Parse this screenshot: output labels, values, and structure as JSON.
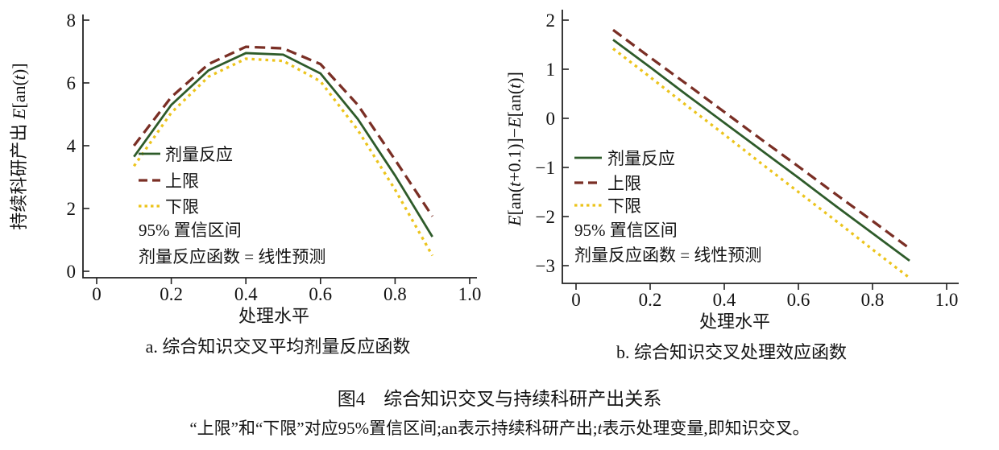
{
  "figure": {
    "caption": "图4　综合知识交叉与持续科研产出关系",
    "note": "“上限”和“下限”对应95%置信区间;an表示持续科研产出;t表示处理变量,即知识交叉。"
  },
  "colors": {
    "dose_response": "#2e5b2a",
    "upper_bound": "#7a2f25",
    "lower_bound": "#ecc41c",
    "axis": "#222222",
    "text": "#131313"
  },
  "chart_data": [
    {
      "id": "chart-a",
      "type": "line",
      "subtitle": "a. 综合知识交叉平均剂量反应函数",
      "xlabel": "处理水平",
      "ylabel": "持续科研产出 E[an(t)]",
      "x": [
        0.1,
        0.2,
        0.3,
        0.4,
        0.5,
        0.6,
        0.7,
        0.8,
        0.9
      ],
      "series": [
        {
          "name": "剂量反应",
          "role": "dose-response",
          "style": "solid",
          "color": "#2e5b2a",
          "values": [
            3.65,
            5.3,
            6.4,
            6.95,
            6.9,
            6.3,
            4.85,
            3.05,
            1.1
          ]
        },
        {
          "name": "上限",
          "role": "upper-bound",
          "style": "dashed",
          "color": "#7a2f25",
          "values": [
            4.0,
            5.55,
            6.6,
            7.15,
            7.1,
            6.6,
            5.3,
            3.55,
            1.75
          ]
        },
        {
          "name": "下限",
          "role": "lower-bound",
          "style": "dotted",
          "color": "#ecc41c",
          "values": [
            3.35,
            5.05,
            6.2,
            6.77,
            6.7,
            6.05,
            4.5,
            2.6,
            0.5
          ]
        }
      ],
      "xticks": [
        0,
        0.2,
        0.4,
        0.6,
        0.8,
        1.0
      ],
      "xtick_labels": [
        "0",
        "0.2",
        "0.4",
        "0.6",
        "0.8",
        "1.0"
      ],
      "yticks": [
        0,
        2,
        4,
        6,
        8
      ],
      "ytick_labels": [
        "0",
        "2",
        "4",
        "6",
        "8"
      ],
      "xlim": [
        0,
        1.0
      ],
      "ylim": [
        0,
        8
      ],
      "grid": false,
      "legend_position": "inside-lower-left",
      "legend_note": [
        "95% 置信区间",
        "剂量反应函数 = 线性预测"
      ]
    },
    {
      "id": "chart-b",
      "type": "line",
      "subtitle": "b. 综合知识交叉处理效应函数",
      "xlabel": "处理水平",
      "ylabel": "E[an(t+0.1)]−E[an(t)]",
      "x": [
        0.1,
        0.2,
        0.3,
        0.4,
        0.5,
        0.6,
        0.7,
        0.8,
        0.9
      ],
      "series": [
        {
          "name": "剂量反应",
          "role": "dose-response",
          "style": "solid",
          "color": "#2e5b2a",
          "values": [
            1.6,
            1.04,
            0.47,
            -0.09,
            -0.65,
            -1.21,
            -1.78,
            -2.34,
            -2.9
          ]
        },
        {
          "name": "上限",
          "role": "upper-bound",
          "style": "dashed",
          "color": "#7a2f25",
          "values": [
            1.8,
            1.24,
            0.69,
            0.13,
            -0.43,
            -0.98,
            -1.54,
            -2.09,
            -2.65
          ]
        },
        {
          "name": "下限",
          "role": "lower-bound",
          "style": "dotted",
          "color": "#ecc41c",
          "values": [
            1.42,
            0.84,
            0.25,
            -0.33,
            -0.92,
            -1.5,
            -2.08,
            -2.67,
            -3.25
          ]
        }
      ],
      "xticks": [
        0,
        0.2,
        0.4,
        0.6,
        0.8,
        1.0
      ],
      "xtick_labels": [
        "0",
        "0.2",
        "0.4",
        "0.6",
        "0.8",
        "1.0"
      ],
      "yticks": [
        2,
        1,
        0,
        -1,
        -2,
        -3
      ],
      "ytick_labels": [
        "2",
        "1",
        "0",
        "−1",
        "−2",
        "−3"
      ],
      "xlim": [
        0,
        1.0
      ],
      "ylim": [
        -3.3,
        2
      ],
      "grid": false,
      "legend_position": "inside-lower-left",
      "legend_note": [
        "95% 置信区间",
        "剂量反应函数 = 线性预测"
      ]
    }
  ]
}
